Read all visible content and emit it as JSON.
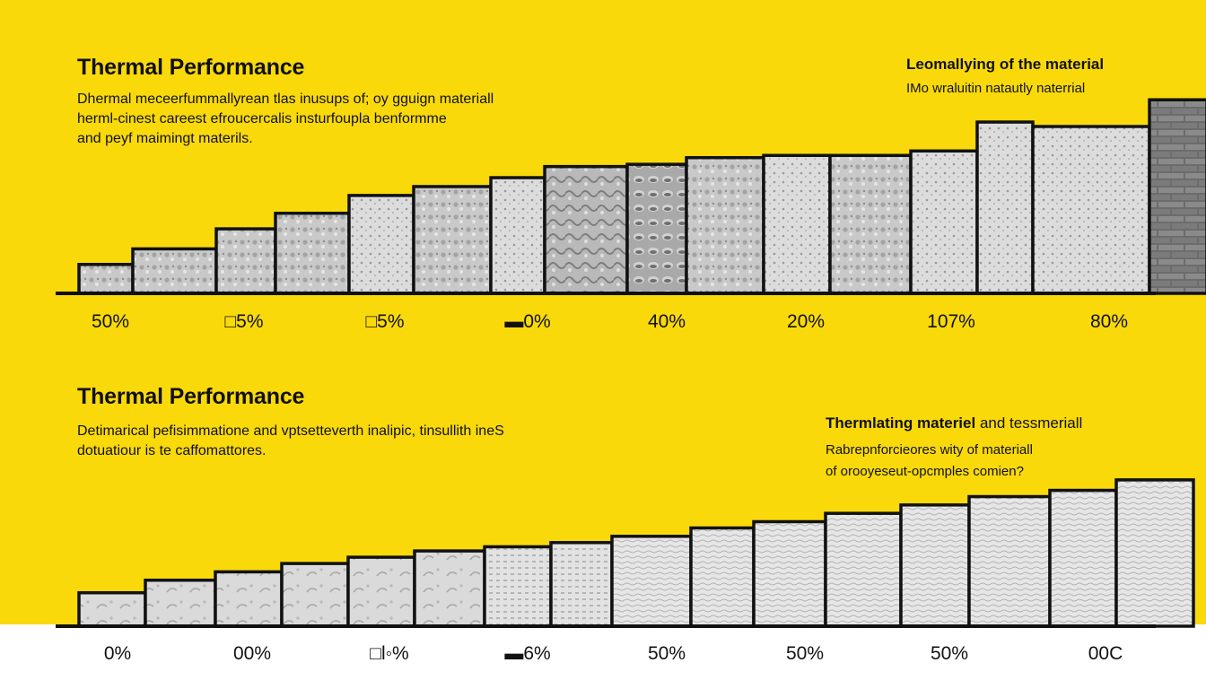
{
  "colors": {
    "background": "#f9d90a",
    "band": "#ffffff",
    "stroke": "#111111"
  },
  "panels": [
    {
      "title": "Thermal Performance",
      "description": [
        "Dhermal meceerfummallyrean tlas inusups of; oy gguign materiall",
        "herml-cinest careest efroucercalis insturfoupla benformme",
        "and peyf maimingt materils."
      ],
      "side_title": "Leomallying of the material",
      "side_description": [
        "IMo wraluitin natautly naterrial"
      ]
    },
    {
      "title": "Thermal Performance",
      "description": [
        "Detimarical pefisimmatione and vptsetteverth inalipic, tinsullith ineS",
        "dotuatiour is te caffomattores."
      ],
      "side_title": "Thermlating materiel",
      "side_title_suffix": " and tessmeriall",
      "side_description": [
        "Rabrepnforcieores wity of materiall",
        "of orooyeseut-opcmples comien?"
      ]
    }
  ],
  "chart_data": [
    {
      "type": "bar",
      "title": "Thermal Performance",
      "tick_labels": [
        "50%",
        "□5%",
        "□5%",
        "▬0%",
        "40%",
        "20%",
        "107%",
        "80%"
      ],
      "values": [
        1.3,
        2.0,
        2.9,
        3.6,
        4.4,
        4.8,
        5.2,
        5.7,
        5.8,
        6.1,
        6.2,
        6.2,
        6.4,
        7.7,
        7.5,
        8.7
      ],
      "ylim": [
        0,
        10
      ],
      "grid": false,
      "legend": "none"
    },
    {
      "type": "bar",
      "title": "Thermal Performance",
      "tick_labels": [
        "0%",
        "00%",
        "□l◦%",
        "▬6%",
        "50%",
        "50%",
        "50%",
        "00C"
      ],
      "values": [
        1.6,
        2.2,
        2.6,
        3.0,
        3.3,
        3.6,
        3.8,
        4.0,
        4.3,
        4.7,
        5.0,
        5.4,
        5.8,
        6.2,
        6.5,
        7.0
      ],
      "ylim": [
        0,
        10
      ],
      "grid": false,
      "legend": "none"
    }
  ]
}
